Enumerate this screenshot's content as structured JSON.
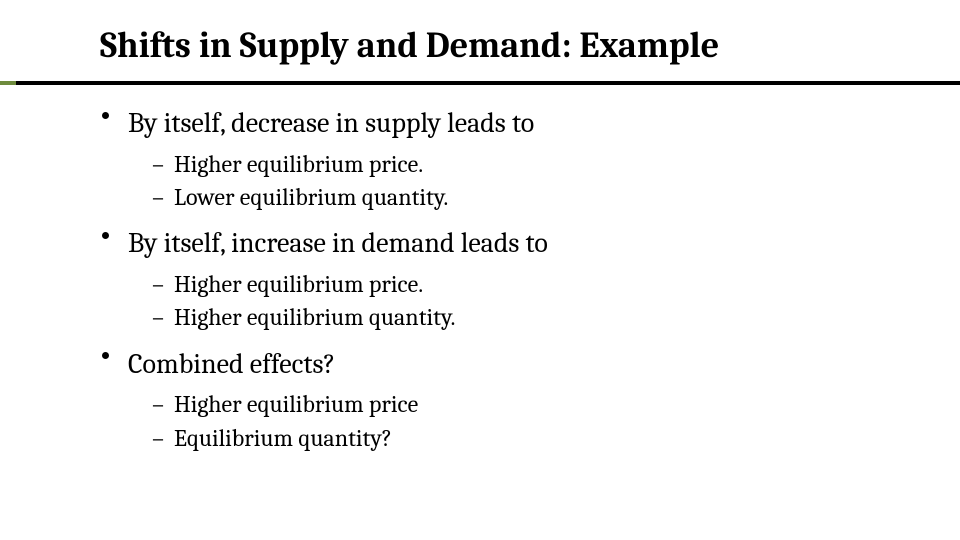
{
  "slide": {
    "title": "Shifts in Supply and Demand: Example",
    "title_fontsize": 36,
    "title_fontweight": 700,
    "accent_color": "#6e8b3d",
    "underline_color": "#000000",
    "background_color": "#ffffff",
    "text_color": "#000000",
    "font_family": "Cambria, Georgia, serif",
    "bullets": [
      {
        "text": "By itself, decrease in supply leads to",
        "sub": [
          "Higher equilibrium price.",
          "Lower equilibrium quantity."
        ]
      },
      {
        "text": "By itself, increase in demand leads to",
        "sub": [
          "Higher equilibrium price.",
          "Higher equilibrium quantity."
        ]
      },
      {
        "text": "Combined effects?",
        "sub": [
          "Higher equilibrium price",
          "Equilibrium quantity?"
        ]
      }
    ],
    "level1_fontsize": 28,
    "level2_fontsize": 24
  }
}
